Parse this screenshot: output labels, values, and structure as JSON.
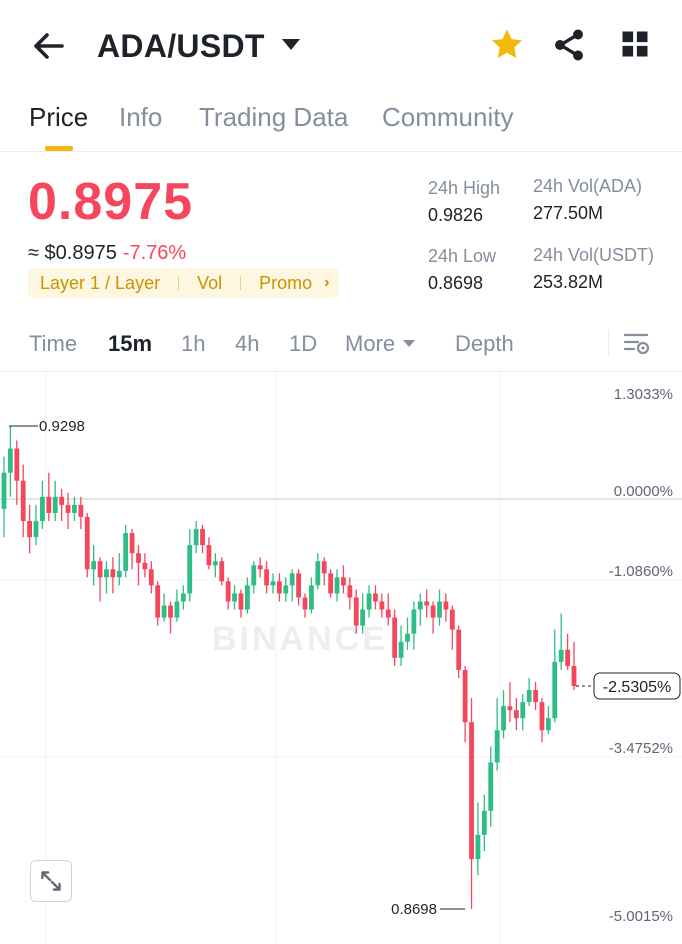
{
  "header": {
    "pair": "ADA/USDT"
  },
  "tabs": [
    {
      "label": "Price",
      "active": true
    },
    {
      "label": "Info"
    },
    {
      "label": "Trading Data"
    },
    {
      "label": "Community"
    }
  ],
  "price": {
    "last": "0.8975",
    "usd": "≈ $0.8975",
    "change": "-7.76%",
    "tags": [
      "Layer 1 / Layer",
      "Vol",
      "Promo"
    ]
  },
  "stats": {
    "high_label": "24h High",
    "high": "0.9826",
    "low_label": "24h Low",
    "low": "0.8698",
    "vol_base_label": "24h Vol(ADA)",
    "vol_base": "277.50M",
    "vol_quote_label": "24h Vol(USDT)",
    "vol_quote": "253.82M"
  },
  "timeframes": {
    "time": "Time",
    "m15": "15m",
    "h1": "1h",
    "h4": "4h",
    "d1": "1D",
    "more": "More",
    "depth": "Depth",
    "active": "15m"
  },
  "chart_data": {
    "type": "candlestick",
    "y_axis_labels": [
      "1.3033%",
      "0.0000%",
      "-1.0860%",
      "-2.5305%",
      "-3.4752%",
      "-5.0015%"
    ],
    "current_label": "-2.5305%",
    "high_marker": "0.9298",
    "low_marker": "0.8698",
    "watermark": "BINANCE",
    "candles": [
      [
        0.9195,
        0.924,
        0.926,
        0.916
      ],
      [
        0.924,
        0.927,
        0.9298,
        0.921
      ],
      [
        0.927,
        0.923,
        0.928,
        0.92
      ],
      [
        0.923,
        0.918,
        0.925,
        0.916
      ],
      [
        0.918,
        0.916,
        0.92,
        0.914
      ],
      [
        0.916,
        0.918,
        0.92,
        0.915
      ],
      [
        0.918,
        0.921,
        0.923,
        0.917
      ],
      [
        0.921,
        0.919,
        0.924,
        0.918
      ],
      [
        0.919,
        0.921,
        0.923,
        0.918
      ],
      [
        0.921,
        0.92,
        0.922,
        0.918
      ],
      [
        0.92,
        0.919,
        0.9215,
        0.917
      ],
      [
        0.919,
        0.92,
        0.921,
        0.918
      ],
      [
        0.92,
        0.9185,
        0.921,
        0.917
      ],
      [
        0.9185,
        0.912,
        0.919,
        0.911
      ],
      [
        0.912,
        0.913,
        0.915,
        0.91
      ],
      [
        0.913,
        0.911,
        0.9135,
        0.908
      ],
      [
        0.911,
        0.912,
        0.913,
        0.909
      ],
      [
        0.912,
        0.911,
        0.9135,
        0.909
      ],
      [
        0.911,
        0.9118,
        0.914,
        0.91
      ],
      [
        0.9118,
        0.9165,
        0.9175,
        0.911
      ],
      [
        0.9165,
        0.914,
        0.917,
        0.912
      ],
      [
        0.914,
        0.9128,
        0.915,
        0.91
      ],
      [
        0.9128,
        0.912,
        0.914,
        0.911
      ],
      [
        0.912,
        0.91,
        0.913,
        0.909
      ],
      [
        0.91,
        0.906,
        0.9105,
        0.905
      ],
      [
        0.906,
        0.9075,
        0.909,
        0.9055
      ],
      [
        0.9075,
        0.906,
        0.908,
        0.904
      ],
      [
        0.906,
        0.908,
        0.9095,
        0.9055
      ],
      [
        0.908,
        0.909,
        0.91,
        0.907
      ],
      [
        0.909,
        0.915,
        0.917,
        0.908
      ],
      [
        0.915,
        0.917,
        0.918,
        0.914
      ],
      [
        0.917,
        0.915,
        0.9175,
        0.914
      ],
      [
        0.915,
        0.9125,
        0.916,
        0.912
      ],
      [
        0.9125,
        0.913,
        0.914,
        0.911
      ],
      [
        0.913,
        0.9105,
        0.9135,
        0.91
      ],
      [
        0.9105,
        0.908,
        0.911,
        0.907
      ],
      [
        0.908,
        0.909,
        0.91,
        0.907
      ],
      [
        0.909,
        0.907,
        0.9095,
        0.906
      ],
      [
        0.907,
        0.91,
        0.911,
        0.9065
      ],
      [
        0.91,
        0.9125,
        0.913,
        0.909
      ],
      [
        0.9125,
        0.912,
        0.9135,
        0.911
      ],
      [
        0.912,
        0.91,
        0.913,
        0.909
      ],
      [
        0.91,
        0.9105,
        0.9115,
        0.909
      ],
      [
        0.9105,
        0.909,
        0.9115,
        0.908
      ],
      [
        0.909,
        0.91,
        0.911,
        0.908
      ],
      [
        0.91,
        0.9115,
        0.912,
        0.908
      ],
      [
        0.9115,
        0.9085,
        0.912,
        0.9075
      ],
      [
        0.9085,
        0.907,
        0.909,
        0.906
      ],
      [
        0.907,
        0.91,
        0.911,
        0.9065
      ],
      [
        0.91,
        0.913,
        0.914,
        0.9095
      ],
      [
        0.913,
        0.9115,
        0.9135,
        0.91
      ],
      [
        0.9115,
        0.909,
        0.912,
        0.9085
      ],
      [
        0.909,
        0.911,
        0.912,
        0.908
      ],
      [
        0.911,
        0.91,
        0.9125,
        0.909
      ],
      [
        0.91,
        0.9085,
        0.911,
        0.907
      ],
      [
        0.9085,
        0.905,
        0.9095,
        0.904
      ],
      [
        0.905,
        0.907,
        0.909,
        0.904
      ],
      [
        0.907,
        0.909,
        0.91,
        0.906
      ],
      [
        0.909,
        0.908,
        0.91,
        0.907
      ],
      [
        0.908,
        0.907,
        0.909,
        0.906
      ],
      [
        0.907,
        0.906,
        0.909,
        0.905
      ],
      [
        0.906,
        0.901,
        0.907,
        0.9
      ],
      [
        0.901,
        0.903,
        0.905,
        0.9
      ],
      [
        0.903,
        0.904,
        0.906,
        0.902
      ],
      [
        0.904,
        0.907,
        0.908,
        0.902
      ],
      [
        0.907,
        0.908,
        0.909,
        0.905
      ],
      [
        0.908,
        0.9075,
        0.9095,
        0.906
      ],
      [
        0.9075,
        0.906,
        0.908,
        0.904
      ],
      [
        0.906,
        0.908,
        0.9095,
        0.905
      ],
      [
        0.908,
        0.907,
        0.909,
        0.9055
      ],
      [
        0.907,
        0.9045,
        0.9075,
        0.902
      ],
      [
        0.9045,
        0.8995,
        0.905,
        0.8985
      ],
      [
        0.8995,
        0.893,
        0.9,
        0.8905
      ],
      [
        0.893,
        0.876,
        0.896,
        0.8698
      ],
      [
        0.876,
        0.879,
        0.883,
        0.874
      ],
      [
        0.879,
        0.882,
        0.884,
        0.877
      ],
      [
        0.882,
        0.888,
        0.89,
        0.88
      ],
      [
        0.888,
        0.892,
        0.896,
        0.887
      ],
      [
        0.892,
        0.895,
        0.897,
        0.891
      ],
      [
        0.895,
        0.8945,
        0.898,
        0.893
      ],
      [
        0.8945,
        0.8935,
        0.896,
        0.892
      ],
      [
        0.8935,
        0.8955,
        0.8965,
        0.892
      ],
      [
        0.8955,
        0.897,
        0.8985,
        0.895
      ],
      [
        0.897,
        0.8955,
        0.898,
        0.8945
      ],
      [
        0.8955,
        0.892,
        0.896,
        0.8905
      ],
      [
        0.892,
        0.8935,
        0.895,
        0.8915
      ],
      [
        0.8935,
        0.9005,
        0.9045,
        0.893
      ],
      [
        0.9005,
        0.902,
        0.9065,
        0.8995
      ],
      [
        0.902,
        0.9,
        0.904,
        0.8995
      ],
      [
        0.9,
        0.8975,
        0.903,
        0.897
      ]
    ]
  }
}
